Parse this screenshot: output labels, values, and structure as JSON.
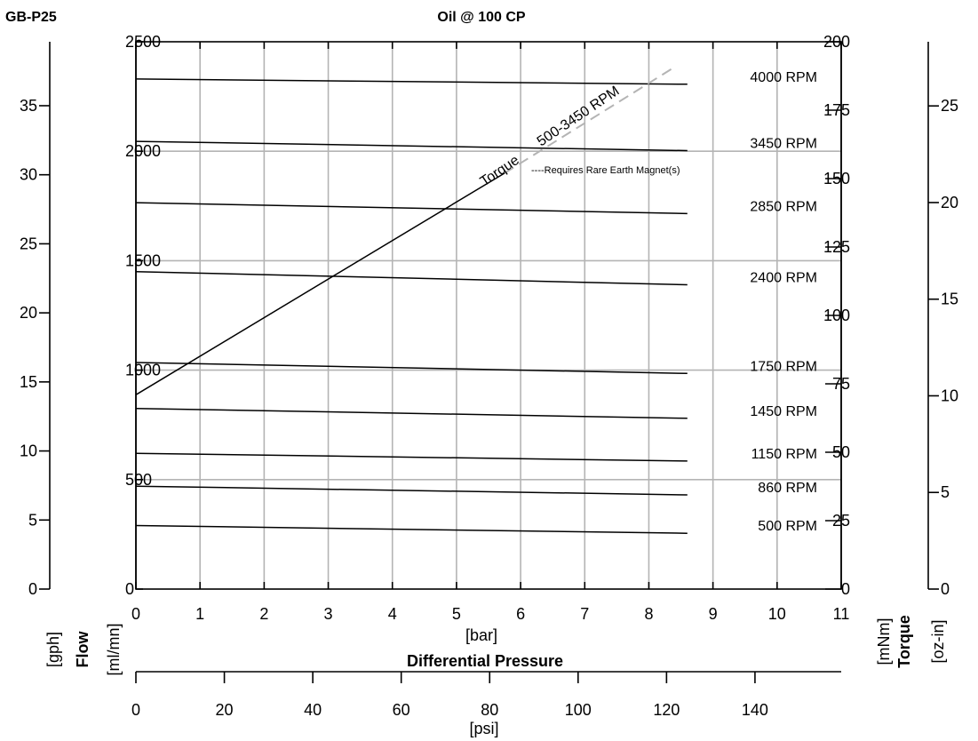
{
  "header": {
    "model": "GB-P25",
    "title": "Oil @ 100 CP"
  },
  "axes": {
    "pressure_bar": {
      "unit": "[bar]",
      "range": [
        0,
        11
      ],
      "ticks": [
        "0",
        "1",
        "2",
        "3",
        "4",
        "5",
        "6",
        "7",
        "8",
        "9",
        "10",
        "11"
      ]
    },
    "pressure_caption": "Differential Pressure",
    "pressure_psi": {
      "unit": "[psi]",
      "range": [
        0,
        159.5
      ],
      "ticks": [
        "0",
        "20",
        "40",
        "60",
        "80",
        "100",
        "120",
        "140"
      ]
    },
    "flow_ml": {
      "unit": "[ml/mn]",
      "range": [
        0,
        2500
      ],
      "ticks": [
        "0",
        "500",
        "1000",
        "1500",
        "2000",
        "2500"
      ]
    },
    "flow_gph": {
      "unit": "[gph]",
      "range": [
        0,
        39.63
      ],
      "ticks": [
        "0",
        "5",
        "10",
        "15",
        "20",
        "25",
        "30",
        "35"
      ]
    },
    "flow_caption": "Flow",
    "torque_mnm": {
      "unit": "[mNm]",
      "range": [
        0,
        200
      ],
      "ticks": [
        "0",
        "25",
        "50",
        "75",
        "100",
        "125",
        "150",
        "175",
        "200"
      ]
    },
    "torque_caption": "Torque",
    "torque_ozin": {
      "unit": "[oz-in]",
      "range": [
        0,
        28.32
      ],
      "ticks": [
        "0",
        "5",
        "10",
        "15",
        "20",
        "25"
      ]
    }
  },
  "chart_data": {
    "type": "line",
    "title": "Oil @ 100 CP",
    "xlabel": "[bar]",
    "xlim": [
      0,
      11
    ],
    "ylim": [
      0,
      2500
    ],
    "grid": true,
    "horizontal_gridlines_ml": [
      500,
      1000,
      1500,
      2000
    ],
    "series": [
      {
        "name": "4000 RPM",
        "x": [
          0,
          8.6
        ],
        "y": [
          2330,
          2306
        ]
      },
      {
        "name": "3450 RPM",
        "x": [
          0,
          8.6
        ],
        "y": [
          2045,
          2003
        ]
      },
      {
        "name": "2850 RPM",
        "x": [
          0,
          8.6
        ],
        "y": [
          1765,
          1715
        ]
      },
      {
        "name": "2400 RPM",
        "x": [
          0,
          8.6
        ],
        "y": [
          1450,
          1390
        ]
      },
      {
        "name": "1750 RPM",
        "x": [
          0,
          8.6
        ],
        "y": [
          1035,
          985
        ]
      },
      {
        "name": "1450 RPM",
        "x": [
          0,
          8.6
        ],
        "y": [
          825,
          780
        ]
      },
      {
        "name": "1150 RPM",
        "x": [
          0,
          8.6
        ],
        "y": [
          620,
          585
        ]
      },
      {
        "name": "860 RPM",
        "x": [
          0,
          8.6
        ],
        "y": [
          470,
          430
        ]
      },
      {
        "name": "500 RPM",
        "x": [
          0,
          8.6
        ],
        "y": [
          290,
          255
        ]
      }
    ],
    "torque": {
      "label_left": "Torque",
      "label_right": "500-3450 RPM",
      "axis": "torque_mnm",
      "solid": {
        "x": [
          0,
          5.75
        ],
        "y": [
          71,
          152
        ]
      },
      "dashed": {
        "x": [
          5.75,
          8.35
        ],
        "y": [
          152,
          190
        ]
      }
    },
    "annotation": "----Requires Rare Earth Magnet(s)"
  }
}
